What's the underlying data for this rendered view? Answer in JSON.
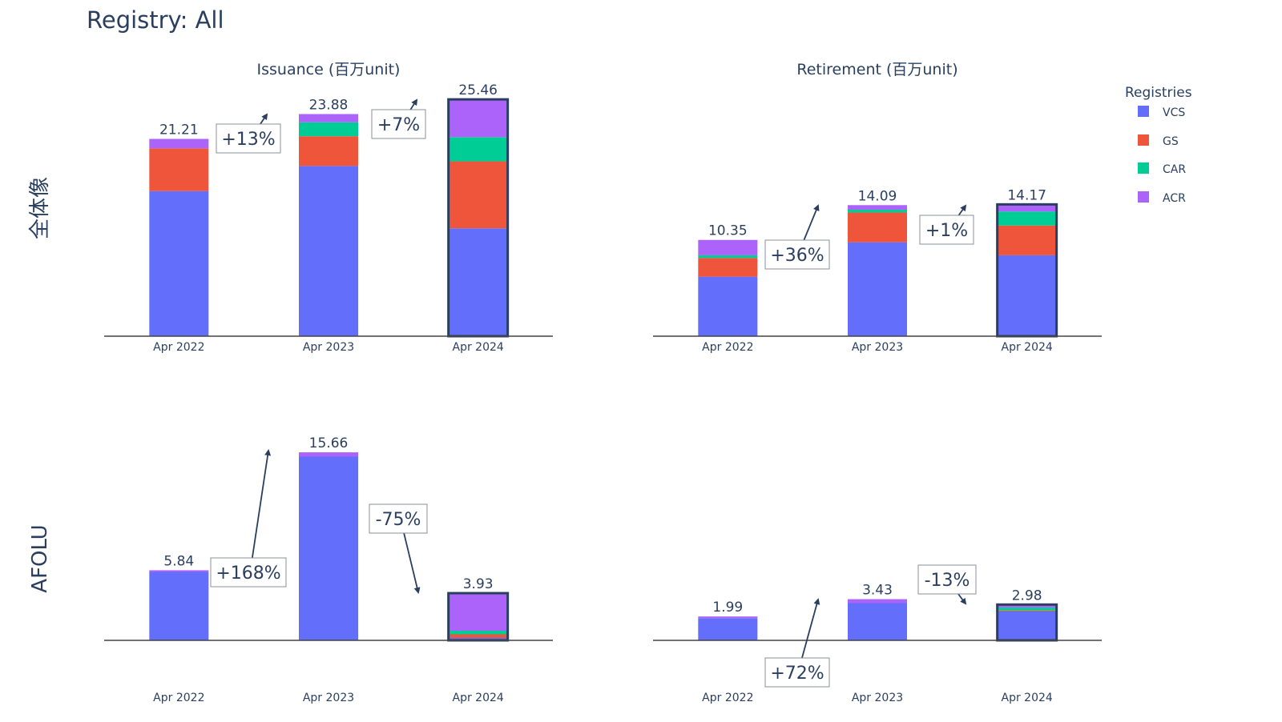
{
  "page_title": "Registry: All",
  "colors": {
    "VCS": "#636efa",
    "GS": "#ef553b",
    "CAR": "#00cc96",
    "ACR": "#ab63fa",
    "text": "#2a3f5f",
    "highlight_border": "#2a3f5f"
  },
  "legend": {
    "title": "Registries",
    "items": [
      "VCS",
      "GS",
      "CAR",
      "ACR"
    ],
    "placement": "right"
  },
  "columns": [
    "Issuance (百万unit)",
    "Retirement (百万unit)"
  ],
  "rows": [
    "全体像",
    "AFOLU"
  ],
  "chart_data": [
    {
      "type": "bar",
      "stacked": true,
      "title": "Issuance (百万unit)",
      "row": "全体像",
      "categories": [
        "Apr 2022",
        "Apr 2023",
        "Apr 2024"
      ],
      "highlight": "Apr 2024",
      "series": [
        {
          "name": "VCS",
          "values": [
            15.6,
            18.3,
            11.6
          ]
        },
        {
          "name": "GS",
          "values": [
            4.6,
            3.2,
            7.2
          ]
        },
        {
          "name": "CAR",
          "values": [
            0.0,
            1.5,
            2.6
          ]
        },
        {
          "name": "ACR",
          "values": [
            1.01,
            0.88,
            4.06
          ]
        }
      ],
      "totals": [
        "21.21",
        "23.88",
        "25.46"
      ],
      "changes": [
        "+13%",
        "+7%"
      ],
      "ylim": [
        0,
        27.5
      ]
    },
    {
      "type": "bar",
      "stacked": true,
      "title": "Retirement (百万unit)",
      "row": "全体像",
      "categories": [
        "Apr 2022",
        "Apr 2023",
        "Apr 2024"
      ],
      "highlight": "Apr 2024",
      "series": [
        {
          "name": "VCS",
          "values": [
            6.4,
            10.1,
            8.7
          ]
        },
        {
          "name": "GS",
          "values": [
            2.0,
            3.2,
            3.2
          ]
        },
        {
          "name": "CAR",
          "values": [
            0.3,
            0.3,
            1.5
          ]
        },
        {
          "name": "ACR",
          "values": [
            1.65,
            0.49,
            0.77
          ]
        }
      ],
      "totals": [
        "10.35",
        "14.09",
        "14.17"
      ],
      "changes": [
        "+36%",
        "+1%"
      ],
      "ylim": [
        0,
        27.5
      ]
    },
    {
      "type": "bar",
      "stacked": true,
      "title": "",
      "row": "AFOLU",
      "categories": [
        "Apr 2022",
        "Apr 2023",
        "Apr 2024"
      ],
      "highlight": "Apr 2024",
      "series": [
        {
          "name": "VCS",
          "values": [
            5.7,
            15.3,
            0.2
          ]
        },
        {
          "name": "GS",
          "values": [
            0.0,
            0.0,
            0.3
          ]
        },
        {
          "name": "CAR",
          "values": [
            0.0,
            0.0,
            0.3
          ]
        },
        {
          "name": "ACR",
          "values": [
            0.14,
            0.36,
            3.13
          ]
        }
      ],
      "totals": [
        "5.84",
        "15.66",
        "3.93"
      ],
      "changes": [
        "+168%",
        "-75%"
      ],
      "ylim": [
        0,
        17
      ]
    },
    {
      "type": "bar",
      "stacked": true,
      "title": "",
      "row": "AFOLU",
      "categories": [
        "Apr 2022",
        "Apr 2023",
        "Apr 2024"
      ],
      "highlight": "Apr 2024",
      "series": [
        {
          "name": "VCS",
          "values": [
            1.85,
            3.1,
            2.4
          ]
        },
        {
          "name": "GS",
          "values": [
            0.0,
            0.0,
            0.08
          ]
        },
        {
          "name": "CAR",
          "values": [
            0.0,
            0.0,
            0.25
          ]
        },
        {
          "name": "ACR",
          "values": [
            0.14,
            0.33,
            0.25
          ]
        }
      ],
      "totals": [
        "1.99",
        "3.43",
        "2.98"
      ],
      "changes": [
        "+72%",
        "-13%"
      ],
      "ylim": [
        0,
        17
      ]
    }
  ]
}
